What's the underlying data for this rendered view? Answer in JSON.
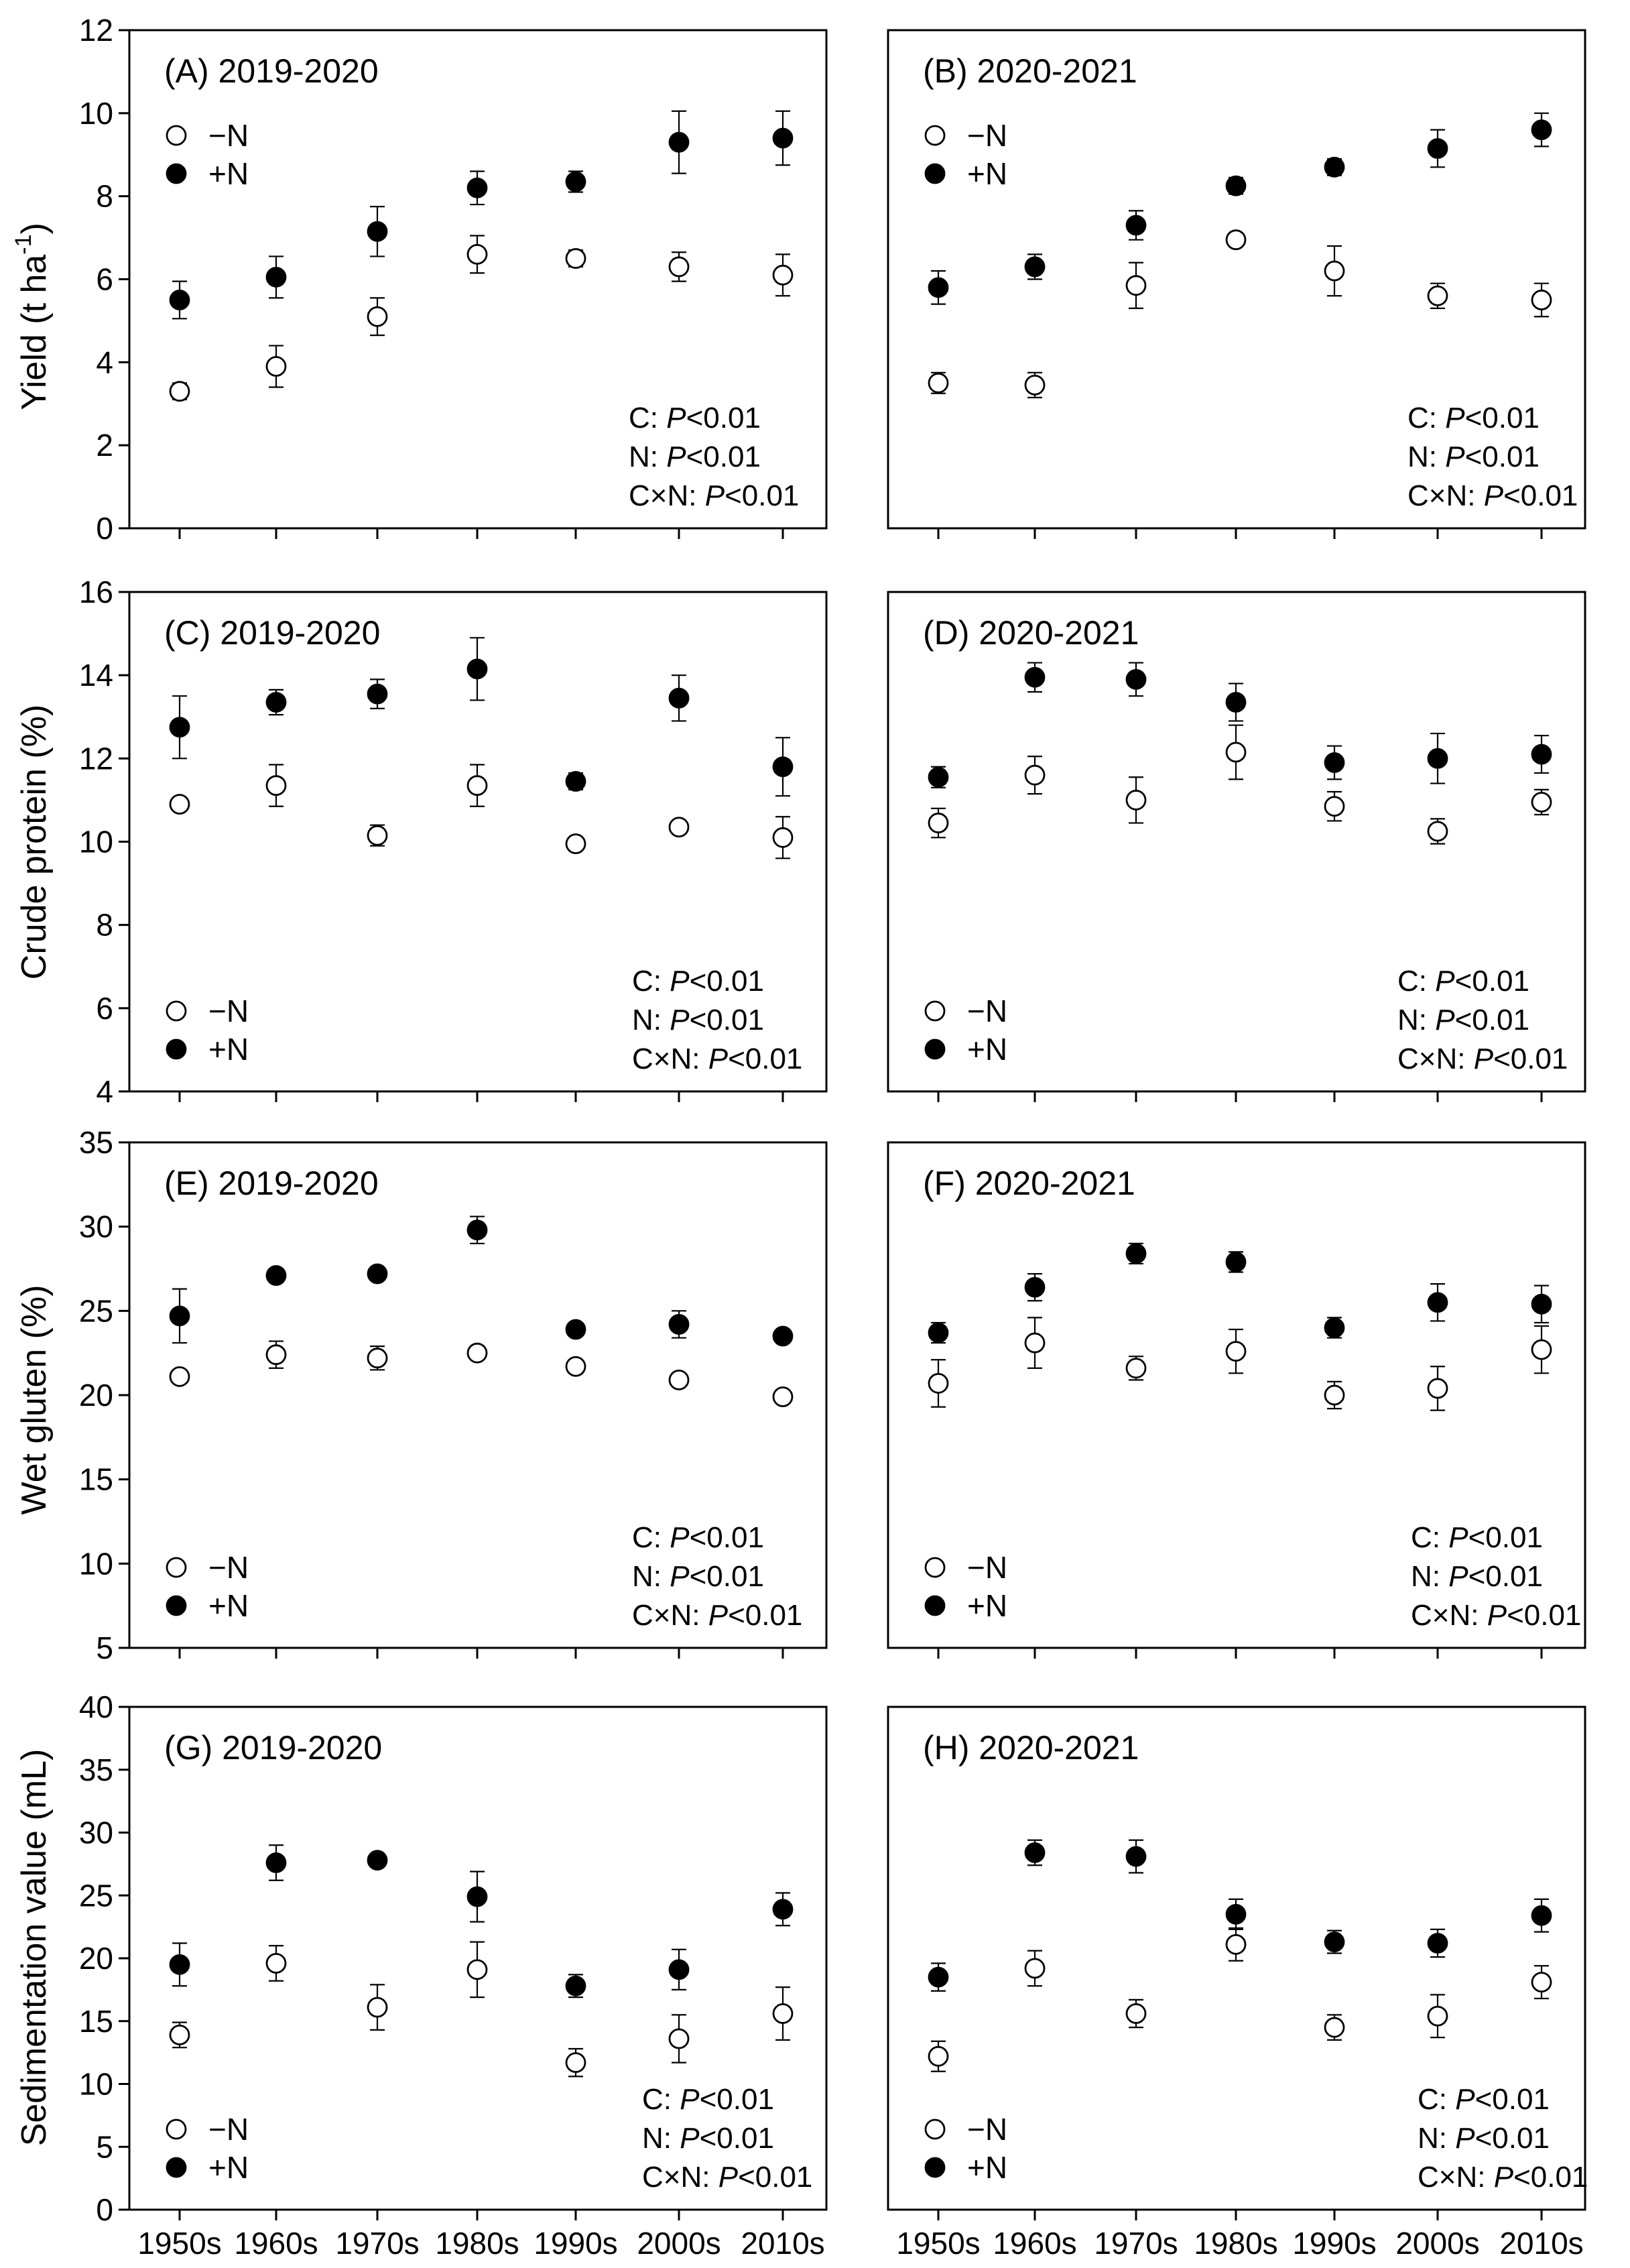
{
  "x_categories": [
    "1950s",
    "1960s",
    "1970s",
    "1980s",
    "1990s",
    "2000s",
    "2010s"
  ],
  "legend": {
    "minus_n": "−N",
    "plus_n": "+N"
  },
  "stats": {
    "prefixes": [
      "C: ",
      "N: ",
      "C×N: "
    ],
    "p_symbol": "P",
    "p_value": "<0.01"
  },
  "colors": {
    "minus_n_fill": "#ffffff",
    "plus_n_fill": "#000000",
    "stroke": "#000000"
  },
  "row_labels": {
    "yield": "Yield (t ha",
    "yield_superscript": "-1",
    "yield_close": ")",
    "crude_protein": "Crude protein (%)",
    "wet_gluten": "Wet gluten (%)",
    "sedimentation": "Sedimentation value (mL)"
  },
  "chart_data": [
    {
      "type": "scatter",
      "title": "(A) 2019-2020",
      "ylabel": "Yield (t ha-1)",
      "ylim": [
        0,
        12
      ],
      "yticks": [
        0,
        2,
        4,
        6,
        8,
        10,
        12
      ],
      "categories": [
        "1950s",
        "1960s",
        "1970s",
        "1980s",
        "1990s",
        "2000s",
        "2010s"
      ],
      "series": [
        {
          "name": "−N",
          "values": [
            3.3,
            3.9,
            5.1,
            6.6,
            6.5,
            6.3,
            6.1
          ],
          "errors": [
            0.2,
            0.5,
            0.45,
            0.45,
            0.2,
            0.35,
            0.5
          ]
        },
        {
          "name": "+N",
          "values": [
            5.5,
            6.05,
            7.15,
            8.2,
            8.35,
            9.3,
            9.4
          ],
          "errors": [
            0.45,
            0.5,
            0.6,
            0.4,
            0.25,
            0.75,
            0.65
          ]
        }
      ]
    },
    {
      "type": "scatter",
      "title": "(B) 2020-2021",
      "ylabel": "",
      "ylim": [
        0,
        12
      ],
      "yticks": [
        0,
        2,
        4,
        6,
        8,
        10,
        12
      ],
      "categories": [
        "1950s",
        "1960s",
        "1970s",
        "1980s",
        "1990s",
        "2000s",
        "2010s"
      ],
      "series": [
        {
          "name": "−N",
          "values": [
            3.5,
            3.45,
            5.85,
            6.95,
            6.2,
            5.6,
            5.5
          ],
          "errors": [
            0.25,
            0.3,
            0.55,
            0.15,
            0.6,
            0.3,
            0.4
          ]
        },
        {
          "name": "+N",
          "values": [
            5.8,
            6.3,
            7.3,
            8.25,
            8.7,
            9.15,
            9.6
          ],
          "errors": [
            0.4,
            0.3,
            0.35,
            0.2,
            0.2,
            0.45,
            0.4
          ]
        }
      ]
    },
    {
      "type": "scatter",
      "title": "(C) 2019-2020",
      "ylabel": "Crude protein (%)",
      "ylim": [
        4,
        16
      ],
      "yticks": [
        4,
        6,
        8,
        10,
        12,
        14,
        16
      ],
      "categories": [
        "1950s",
        "1960s",
        "1970s",
        "1980s",
        "1990s",
        "2000s",
        "2010s"
      ],
      "series": [
        {
          "name": "−N",
          "values": [
            10.9,
            11.35,
            10.15,
            11.35,
            9.95,
            10.35,
            10.1
          ],
          "errors": [
            0.1,
            0.5,
            0.25,
            0.5,
            0.1,
            0.1,
            0.5
          ]
        },
        {
          "name": "+N",
          "values": [
            12.75,
            13.35,
            13.55,
            14.15,
            11.45,
            13.45,
            11.8
          ],
          "errors": [
            0.75,
            0.3,
            0.35,
            0.75,
            0.2,
            0.55,
            0.7
          ]
        }
      ]
    },
    {
      "type": "scatter",
      "title": "(D) 2020-2021",
      "ylabel": "",
      "ylim": [
        4,
        16
      ],
      "yticks": [
        4,
        6,
        8,
        10,
        12,
        14,
        16
      ],
      "categories": [
        "1950s",
        "1960s",
        "1970s",
        "1980s",
        "1990s",
        "2000s",
        "2010s"
      ],
      "series": [
        {
          "name": "−N",
          "values": [
            10.45,
            11.6,
            11.0,
            12.15,
            10.85,
            10.25,
            10.95
          ],
          "errors": [
            0.35,
            0.45,
            0.55,
            0.65,
            0.35,
            0.3,
            0.3
          ]
        },
        {
          "name": "+N",
          "values": [
            11.55,
            13.95,
            13.9,
            13.35,
            11.9,
            12.0,
            12.1
          ],
          "errors": [
            0.25,
            0.35,
            0.4,
            0.45,
            0.4,
            0.6,
            0.45
          ]
        }
      ]
    },
    {
      "type": "scatter",
      "title": "(E) 2019-2020",
      "ylabel": "Wet gluten (%)",
      "ylim": [
        5,
        35
      ],
      "yticks": [
        5,
        10,
        15,
        20,
        25,
        30,
        35
      ],
      "categories": [
        "1950s",
        "1960s",
        "1970s",
        "1980s",
        "1990s",
        "2000s",
        "2010s"
      ],
      "series": [
        {
          "name": "−N",
          "values": [
            21.1,
            22.4,
            22.2,
            22.5,
            21.7,
            20.9,
            19.9
          ],
          "errors": [
            0.3,
            0.8,
            0.7,
            0.3,
            0.3,
            0.3,
            0.3
          ]
        },
        {
          "name": "+N",
          "values": [
            24.7,
            27.1,
            27.2,
            29.8,
            23.9,
            24.2,
            23.5
          ],
          "errors": [
            1.6,
            0.3,
            0.3,
            0.8,
            0.3,
            0.8,
            0.3
          ]
        }
      ]
    },
    {
      "type": "scatter",
      "title": "(F) 2020-2021",
      "ylabel": "",
      "ylim": [
        5,
        35
      ],
      "yticks": [
        5,
        10,
        15,
        20,
        25,
        30,
        35
      ],
      "categories": [
        "1950s",
        "1960s",
        "1970s",
        "1980s",
        "1990s",
        "2000s",
        "2010s"
      ],
      "series": [
        {
          "name": "−N",
          "values": [
            20.7,
            23.1,
            21.6,
            22.6,
            20.0,
            20.4,
            22.7
          ],
          "errors": [
            1.4,
            1.5,
            0.7,
            1.3,
            0.8,
            1.3,
            1.4
          ]
        },
        {
          "name": "+N",
          "values": [
            23.7,
            26.4,
            28.4,
            27.9,
            24.0,
            25.5,
            25.4
          ],
          "errors": [
            0.6,
            0.8,
            0.6,
            0.6,
            0.6,
            1.1,
            1.1
          ]
        }
      ]
    },
    {
      "type": "scatter",
      "title": "(G) 2019-2020",
      "ylabel": "Sedimentation value (mL)",
      "ylim": [
        0,
        40
      ],
      "yticks": [
        0,
        5,
        10,
        15,
        20,
        25,
        30,
        35,
        40
      ],
      "categories": [
        "1950s",
        "1960s",
        "1970s",
        "1980s",
        "1990s",
        "2000s",
        "2010s"
      ],
      "series": [
        {
          "name": "−N",
          "values": [
            13.9,
            19.6,
            16.1,
            19.1,
            11.7,
            13.6,
            15.6
          ],
          "errors": [
            1.0,
            1.4,
            1.8,
            2.2,
            1.1,
            1.9,
            2.1
          ]
        },
        {
          "name": "+N",
          "values": [
            19.5,
            27.6,
            27.8,
            24.9,
            17.8,
            19.1,
            23.9
          ],
          "errors": [
            1.7,
            1.4,
            0.4,
            2.0,
            0.9,
            1.6,
            1.3
          ]
        }
      ]
    },
    {
      "type": "scatter",
      "title": "(H) 2020-2021",
      "ylabel": "",
      "ylim": [
        0,
        40
      ],
      "yticks": [
        0,
        5,
        10,
        15,
        20,
        25,
        30,
        35,
        40
      ],
      "categories": [
        "1950s",
        "1960s",
        "1970s",
        "1980s",
        "1990s",
        "2000s",
        "2010s"
      ],
      "series": [
        {
          "name": "−N",
          "values": [
            12.2,
            19.2,
            15.6,
            21.1,
            14.5,
            15.4,
            18.1
          ],
          "errors": [
            1.2,
            1.4,
            1.1,
            1.3,
            1.0,
            1.7,
            1.3
          ]
        },
        {
          "name": "+N",
          "values": [
            18.5,
            28.4,
            28.1,
            23.5,
            21.3,
            21.2,
            23.4
          ],
          "errors": [
            1.1,
            1.0,
            1.3,
            1.2,
            0.9,
            1.1,
            1.3
          ]
        }
      ]
    }
  ]
}
